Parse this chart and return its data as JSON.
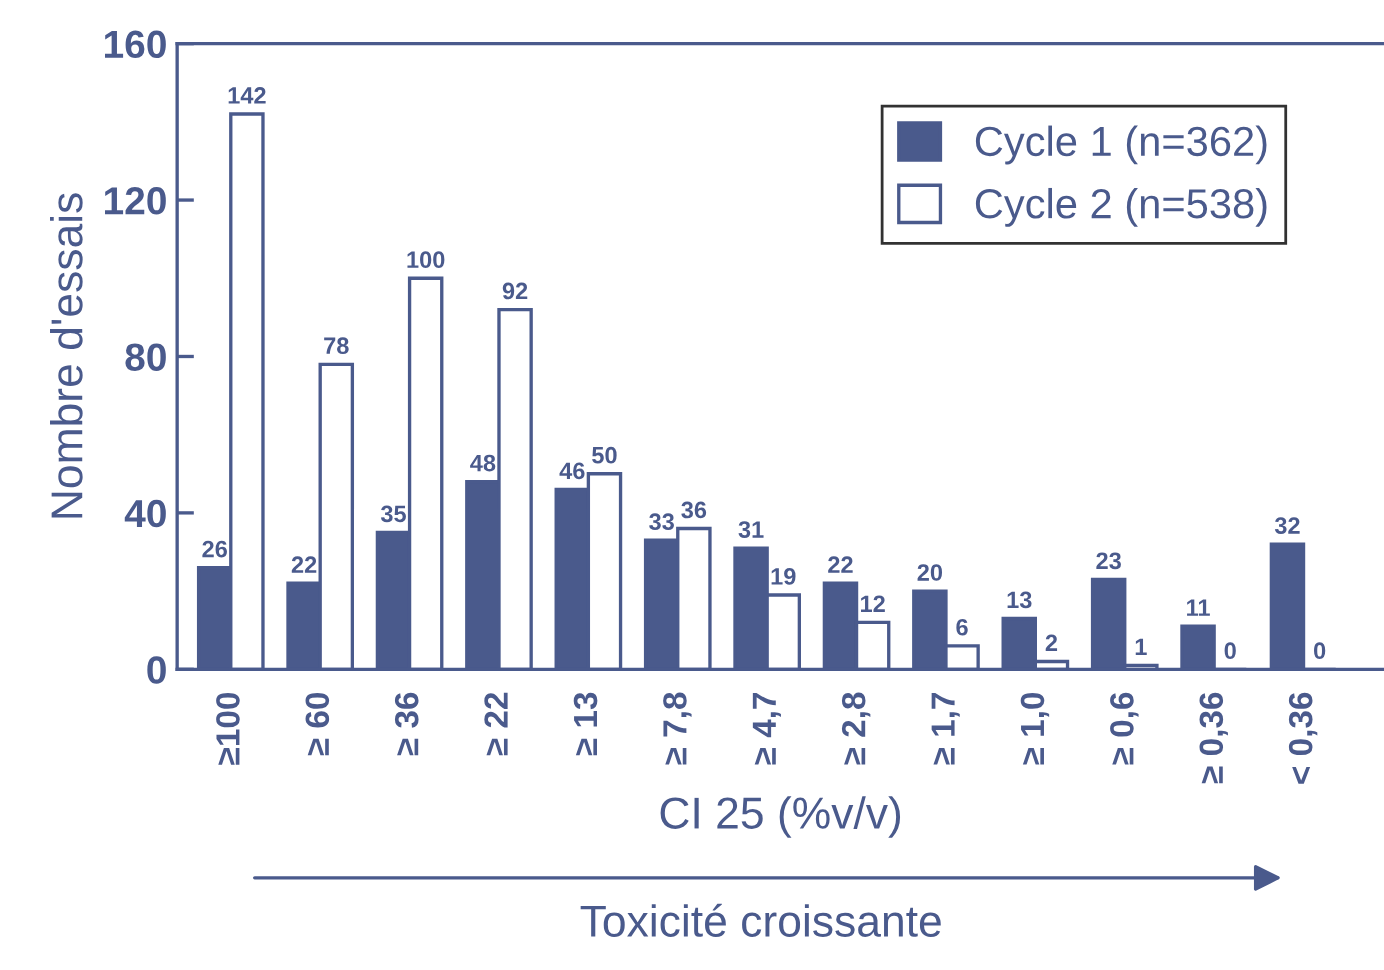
{
  "chart_data": {
    "type": "bar",
    "xlabel": "CI 25 (%v/v)",
    "ylabel": "Nombre d'essais",
    "categories": [
      "≥100",
      "≥ 60",
      "≥ 36",
      "≥ 22",
      "≥ 13",
      "≥ 7,8",
      "≥ 4,7",
      "≥ 2,8",
      "≥ 1,7",
      "≥ 1,0",
      "≥ 0,6",
      "≥ 0,36",
      "< 0,36"
    ],
    "series": [
      {
        "name": "Cycle 1 (n=362)",
        "color": "#4a5a8c",
        "values": [
          26,
          22,
          35,
          48,
          46,
          33,
          31,
          22,
          20,
          13,
          23,
          11,
          32
        ]
      },
      {
        "name": "Cycle 2 (n=538)",
        "color": "#ffffff",
        "values": [
          142,
          78,
          100,
          92,
          50,
          36,
          19,
          12,
          6,
          2,
          1,
          0,
          0
        ]
      }
    ],
    "ylim": [
      0,
      160
    ],
    "yticks": [
      0,
      40,
      80,
      120,
      160
    ],
    "data_labels": true,
    "grid": false,
    "legend": "top right",
    "annotations": [
      "Toxicité croissante"
    ]
  }
}
